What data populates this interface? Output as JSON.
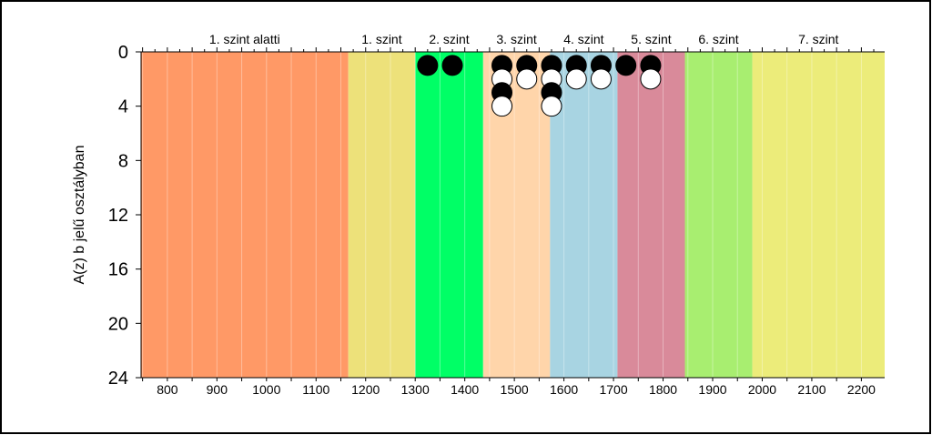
{
  "chart_data": {
    "type": "scatter",
    "ylabel": "A(z) b jelű osztályban",
    "xlabel": "",
    "xlim": [
      747,
      2247
    ],
    "ylim": [
      0,
      24
    ],
    "y_inverted": true,
    "y_ticks": [
      0,
      4,
      8,
      12,
      16,
      20,
      24
    ],
    "x_ticks": [
      800,
      900,
      1000,
      1100,
      1200,
      1300,
      1400,
      1500,
      1600,
      1700,
      1800,
      1900,
      2000,
      2100,
      2200
    ],
    "levels": [
      {
        "label": "1. szint alatti",
        "from": 747,
        "to": 1165,
        "color": "#ff9966"
      },
      {
        "label": "1. szint",
        "from": 1165,
        "to": 1300,
        "color": "#ede17a"
      },
      {
        "label": "2. szint",
        "from": 1300,
        "to": 1437,
        "color": "#00ff66"
      },
      {
        "label": "3. szint",
        "from": 1437,
        "to": 1572,
        "color": "#ffd5aa"
      },
      {
        "label": "4. szint",
        "from": 1572,
        "to": 1708,
        "color": "#a8d4e2"
      },
      {
        "label": "5. szint",
        "from": 1708,
        "to": 1844,
        "color": "#d98a9a"
      },
      {
        "label": "6. szint",
        "from": 1844,
        "to": 1980,
        "color": "#a8ee70"
      },
      {
        "label": "7. szint",
        "from": 1980,
        "to": 2247,
        "color": "#ecec7a"
      }
    ],
    "series": [
      {
        "color": "#000000",
        "points": [
          {
            "x": 1325,
            "y": 1
          },
          {
            "x": 1375,
            "y": 1
          },
          {
            "x": 1475,
            "y": 1
          },
          {
            "x": 1475,
            "y": 3
          },
          {
            "x": 1525,
            "y": 1
          },
          {
            "x": 1575,
            "y": 1
          },
          {
            "x": 1575,
            "y": 3
          },
          {
            "x": 1625,
            "y": 1
          },
          {
            "x": 1675,
            "y": 1
          },
          {
            "x": 1725,
            "y": 1
          },
          {
            "x": 1775,
            "y": 1
          }
        ]
      },
      {
        "color": "#ffffff",
        "points": [
          {
            "x": 1475,
            "y": 2
          },
          {
            "x": 1475,
            "y": 4
          },
          {
            "x": 1525,
            "y": 2
          },
          {
            "x": 1575,
            "y": 2
          },
          {
            "x": 1575,
            "y": 4
          },
          {
            "x": 1625,
            "y": 2
          },
          {
            "x": 1675,
            "y": 2
          },
          {
            "x": 1775,
            "y": 2
          }
        ]
      }
    ]
  }
}
